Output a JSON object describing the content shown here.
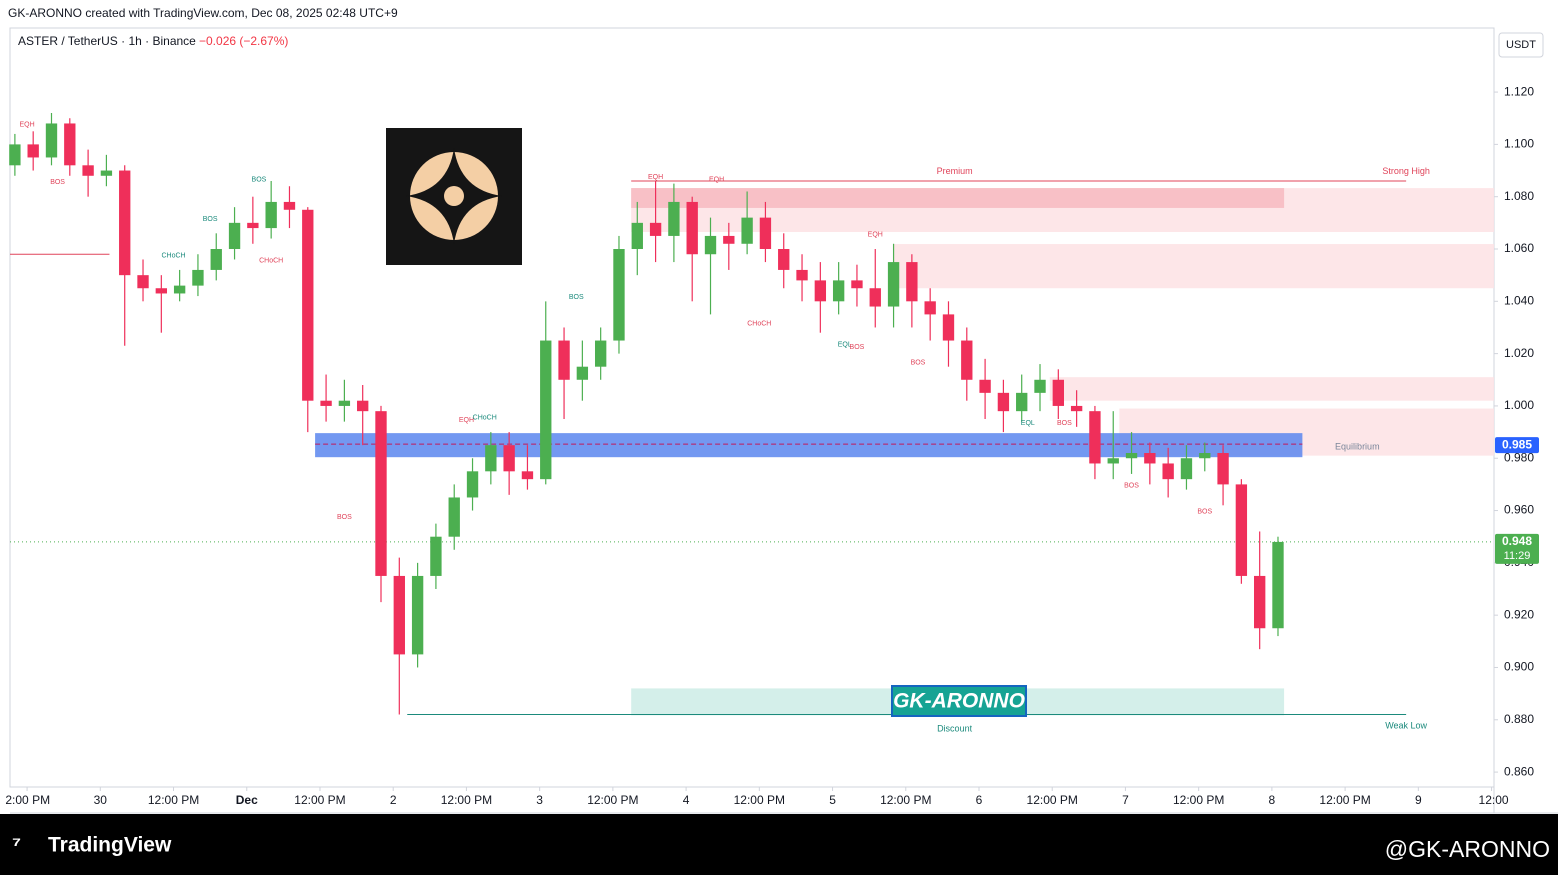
{
  "header": {
    "attribution": "GK-ARONNO created with TradingView.com, Dec 08, 2025 02:48 UTC+9"
  },
  "footer": {
    "brand": "TradingView",
    "handle": "@GK-ARONNO"
  },
  "chart_data": {
    "type": "candlestick",
    "title": "ASTER / TetherUS · 1h · Binance",
    "change": "−0.026 (−2.67%)",
    "currency": "USDT",
    "watermark": "GK-ARONNO",
    "up_color": "#4caf50",
    "down_color": "#ef2f5a",
    "xlim": [
      -14.8,
      228.4
    ],
    "ylim": [
      0.8543,
      1.1445
    ],
    "xticks": [
      {
        "value": -12,
        "label": "2:00 PM"
      },
      {
        "value": 0,
        "label": "30"
      },
      {
        "value": 12,
        "label": "12:00 PM"
      },
      {
        "value": 24,
        "label": "Dec"
      },
      {
        "value": 36,
        "label": "12:00 PM"
      },
      {
        "value": 48,
        "label": "2"
      },
      {
        "value": 60,
        "label": "12:00 PM"
      },
      {
        "value": 72,
        "label": "3"
      },
      {
        "value": 84,
        "label": "12:00 PM"
      },
      {
        "value": 96,
        "label": "4"
      },
      {
        "value": 108,
        "label": "12:00 PM"
      },
      {
        "value": 120,
        "label": "5"
      },
      {
        "value": 132,
        "label": "12:00 PM"
      },
      {
        "value": 144,
        "label": "6"
      },
      {
        "value": 156,
        "label": "12:00 PM"
      },
      {
        "value": 168,
        "label": "7"
      },
      {
        "value": 180,
        "label": "12:00 PM"
      },
      {
        "value": 192,
        "label": "8"
      },
      {
        "value": 204,
        "label": "12:00 PM"
      },
      {
        "value": 216,
        "label": "9"
      },
      {
        "value": 228,
        "label": "12:00"
      }
    ],
    "yticks": [
      {
        "value": 0.86,
        "label": "0.860"
      },
      {
        "value": 0.88,
        "label": "0.880"
      },
      {
        "value": 0.9,
        "label": "0.900"
      },
      {
        "value": 0.92,
        "label": "0.920"
      },
      {
        "value": 0.94,
        "label": "0.940"
      },
      {
        "value": 0.96,
        "label": "0.960"
      },
      {
        "value": 0.98,
        "label": "0.980"
      },
      {
        "value": 1.0,
        "label": "1.000"
      },
      {
        "value": 1.02,
        "label": "1.020"
      },
      {
        "value": 1.04,
        "label": "1.040"
      },
      {
        "value": 1.06,
        "label": "1.060"
      },
      {
        "value": 1.08,
        "label": "1.080"
      },
      {
        "value": 1.1,
        "label": "1.100"
      },
      {
        "value": 1.12,
        "label": "1.120"
      }
    ],
    "x": [
      -14,
      -11,
      -8,
      -5,
      -2,
      1,
      4,
      7,
      10,
      13,
      16,
      19,
      22,
      25,
      28,
      31,
      34,
      37,
      40,
      43,
      46,
      49,
      52,
      55,
      58,
      61,
      64,
      67,
      70,
      73,
      76,
      79,
      82,
      85,
      88,
      91,
      94,
      97,
      100,
      103,
      106,
      109,
      112,
      115,
      118,
      121,
      124,
      127,
      130,
      133,
      136,
      139,
      142,
      145,
      148,
      151,
      154,
      157,
      160,
      163,
      166,
      169,
      172,
      175,
      178,
      181,
      184,
      187,
      190,
      193
    ],
    "open": [
      1.092,
      1.1,
      1.095,
      1.108,
      1.092,
      1.088,
      1.09,
      1.05,
      1.045,
      1.043,
      1.046,
      1.052,
      1.06,
      1.07,
      1.068,
      1.078,
      1.075,
      1.002,
      1.0,
      1.002,
      0.998,
      0.935,
      0.905,
      0.935,
      0.95,
      0.965,
      0.975,
      0.985,
      0.975,
      0.972,
      1.025,
      1.01,
      1.015,
      1.025,
      1.06,
      1.07,
      1.065,
      1.078,
      1.058,
      1.065,
      1.062,
      1.072,
      1.06,
      1.052,
      1.048,
      1.04,
      1.048,
      1.045,
      1.038,
      1.055,
      1.04,
      1.035,
      1.025,
      1.01,
      1.005,
      0.998,
      1.005,
      1.01,
      1.0,
      0.998,
      0.978,
      0.98,
      0.982,
      0.978,
      0.972,
      0.98,
      0.982,
      0.97,
      0.935,
      0.915
    ],
    "high": [
      1.104,
      1.105,
      1.112,
      1.11,
      1.098,
      1.096,
      1.092,
      1.056,
      1.05,
      1.052,
      1.058,
      1.066,
      1.076,
      1.08,
      1.086,
      1.084,
      1.076,
      1.012,
      1.01,
      1.008,
      1.0,
      0.942,
      0.94,
      0.955,
      0.97,
      0.98,
      0.99,
      0.99,
      0.985,
      1.04,
      1.03,
      1.025,
      1.03,
      1.065,
      1.078,
      1.086,
      1.085,
      1.08,
      1.072,
      1.07,
      1.082,
      1.078,
      1.066,
      1.058,
      1.055,
      1.055,
      1.054,
      1.06,
      1.062,
      1.058,
      1.045,
      1.04,
      1.03,
      1.018,
      1.01,
      1.012,
      1.016,
      1.014,
      1.006,
      1.0,
      0.998,
      0.99,
      0.986,
      0.984,
      0.985,
      0.986,
      0.985,
      0.972,
      0.952,
      0.95
    ],
    "low": [
      1.088,
      1.09,
      1.092,
      1.088,
      1.08,
      1.084,
      1.023,
      1.04,
      1.028,
      1.04,
      1.042,
      1.048,
      1.056,
      1.062,
      1.064,
      1.068,
      0.99,
      0.994,
      0.994,
      0.985,
      0.925,
      0.882,
      0.9,
      0.93,
      0.945,
      0.96,
      0.97,
      0.966,
      0.968,
      0.97,
      0.995,
      1.002,
      1.01,
      1.02,
      1.05,
      1.055,
      1.055,
      1.04,
      1.035,
      1.052,
      1.058,
      1.055,
      1.045,
      1.04,
      1.028,
      1.035,
      1.038,
      1.03,
      1.03,
      1.03,
      1.025,
      1.015,
      1.002,
      0.995,
      0.99,
      0.994,
      0.998,
      0.995,
      0.992,
      0.972,
      0.972,
      0.974,
      0.97,
      0.965,
      0.968,
      0.975,
      0.962,
      0.932,
      0.907,
      0.912
    ],
    "close": [
      1.1,
      1.095,
      1.108,
      1.092,
      1.088,
      1.09,
      1.05,
      1.045,
      1.043,
      1.046,
      1.052,
      1.06,
      1.07,
      1.068,
      1.078,
      1.075,
      1.002,
      1.0,
      1.002,
      0.998,
      0.935,
      0.905,
      0.935,
      0.95,
      0.965,
      0.975,
      0.985,
      0.975,
      0.972,
      1.025,
      1.01,
      1.015,
      1.025,
      1.06,
      1.07,
      1.065,
      1.078,
      1.058,
      1.065,
      1.062,
      1.072,
      1.06,
      1.052,
      1.048,
      1.04,
      1.048,
      1.045,
      1.038,
      1.055,
      1.04,
      1.035,
      1.025,
      1.01,
      1.005,
      0.998,
      1.005,
      1.01,
      1.0,
      0.998,
      0.978,
      0.98,
      0.982,
      0.978,
      0.972,
      0.98,
      0.982,
      0.97,
      0.935,
      0.915,
      0.948
    ],
    "zones": [
      {
        "x0": 87,
        "x1": 228.4,
        "y0": 1.0665,
        "y1": 1.0833,
        "color": "#fde2e4"
      },
      {
        "x0": 87,
        "x1": 194,
        "y0": 1.0757,
        "y1": 1.0833,
        "color": "#f7b9c0"
      },
      {
        "x0": 130,
        "x1": 228.4,
        "y0": 1.045,
        "y1": 1.0619,
        "color": "#fde2e4"
      },
      {
        "x0": 155.6,
        "x1": 228.4,
        "y0": 1.002,
        "y1": 1.011,
        "color": "#fde2e4"
      },
      {
        "x0": 167,
        "x1": 228.4,
        "y0": 0.981,
        "y1": 0.999,
        "color": "#fde2e4"
      },
      {
        "x0": 35.2,
        "x1": 197,
        "y0": 0.9804,
        "y1": 0.9896,
        "color": "#5b86ef"
      },
      {
        "x0": 87,
        "x1": 194,
        "y0": 0.8817,
        "y1": 0.892,
        "color": "#cdece6"
      }
    ],
    "levels": [
      {
        "x0": 87,
        "x1": 214,
        "value": 1.086,
        "color": "#e0445a",
        "dash": ""
      },
      {
        "x0": 50.3,
        "x1": 214,
        "value": 0.882,
        "color": "#1b8a7c",
        "dash": ""
      },
      {
        "x0": 35.2,
        "x1": 197,
        "value": 0.9854,
        "color": "#c2185b",
        "dash": "5 3"
      },
      {
        "x0": -14.8,
        "x1": 1.5,
        "value": 1.058,
        "color": "#e0445a",
        "dash": ""
      },
      {
        "x0": -14.8,
        "x1": 228.4,
        "value": 0.948,
        "color": "#4caf50",
        "dash": "1 3"
      }
    ],
    "annotations": [
      {
        "text": "Premium",
        "x": 140,
        "y": 1.0895,
        "color": "#e0445a"
      },
      {
        "text": "Strong High",
        "x": 214,
        "y": 1.0895,
        "color": "#e0445a"
      },
      {
        "text": "Discount",
        "x": 140,
        "y": 0.8765,
        "color": "#1b8a7c"
      },
      {
        "text": "Weak Low",
        "x": 214,
        "y": 0.8775,
        "color": "#1b8a7c"
      },
      {
        "text": "Equilibrium",
        "x": 206,
        "y": 0.9842,
        "color": "#7a869a"
      },
      {
        "text": "EQH",
        "x": -12,
        "y": 1.1075,
        "color": "#e0445a"
      },
      {
        "text": "BOS",
        "x": -7,
        "y": 1.0855,
        "color": "#e0445a"
      },
      {
        "text": "CHoCH",
        "x": 12,
        "y": 1.0575,
        "color": "#1b8a7c"
      },
      {
        "text": "BOS",
        "x": 18,
        "y": 1.0715,
        "color": "#1b8a7c"
      },
      {
        "text": "BOS",
        "x": 26,
        "y": 1.0865,
        "color": "#1b8a7c"
      },
      {
        "text": "CHoCH",
        "x": 28,
        "y": 1.0555,
        "color": "#e0445a"
      },
      {
        "text": "BOS",
        "x": 40,
        "y": 0.9575,
        "color": "#e0445a"
      },
      {
        "text": "EQH",
        "x": 60,
        "y": 0.9945,
        "color": "#e0445a"
      },
      {
        "text": "CHoCH",
        "x": 63,
        "y": 0.9955,
        "color": "#1b8a7c"
      },
      {
        "text": "BOS",
        "x": 78,
        "y": 1.0415,
        "color": "#1b8a7c"
      },
      {
        "text": "EQH",
        "x": 91,
        "y": 1.0875,
        "color": "#e0445a"
      },
      {
        "text": "EQH",
        "x": 101,
        "y": 1.0865,
        "color": "#e0445a"
      },
      {
        "text": "CHoCH",
        "x": 108,
        "y": 1.0315,
        "color": "#e0445a"
      },
      {
        "text": "EQL",
        "x": 122,
        "y": 1.0235,
        "color": "#1b8a7c"
      },
      {
        "text": "BOS",
        "x": 124,
        "y": 1.0225,
        "color": "#e0445a"
      },
      {
        "text": "EQH",
        "x": 127,
        "y": 1.0655,
        "color": "#e0445a"
      },
      {
        "text": "BOS",
        "x": 134,
        "y": 1.0165,
        "color": "#e0445a"
      },
      {
        "text": "EQL",
        "x": 152,
        "y": 0.9935,
        "color": "#1b8a7c"
      },
      {
        "text": "BOS",
        "x": 158,
        "y": 0.9935,
        "color": "#e0445a"
      },
      {
        "text": "BOS",
        "x": 169,
        "y": 0.9695,
        "color": "#e0445a"
      },
      {
        "text": "BOS",
        "x": 181,
        "y": 0.9595,
        "color": "#e0445a"
      }
    ],
    "markers": [
      {
        "value": 0.985,
        "label": "0.985",
        "color": "#2962ff"
      },
      {
        "value": 0.948,
        "label": "0.948",
        "color": "#4caf50",
        "countdown": "11:29"
      }
    ]
  }
}
